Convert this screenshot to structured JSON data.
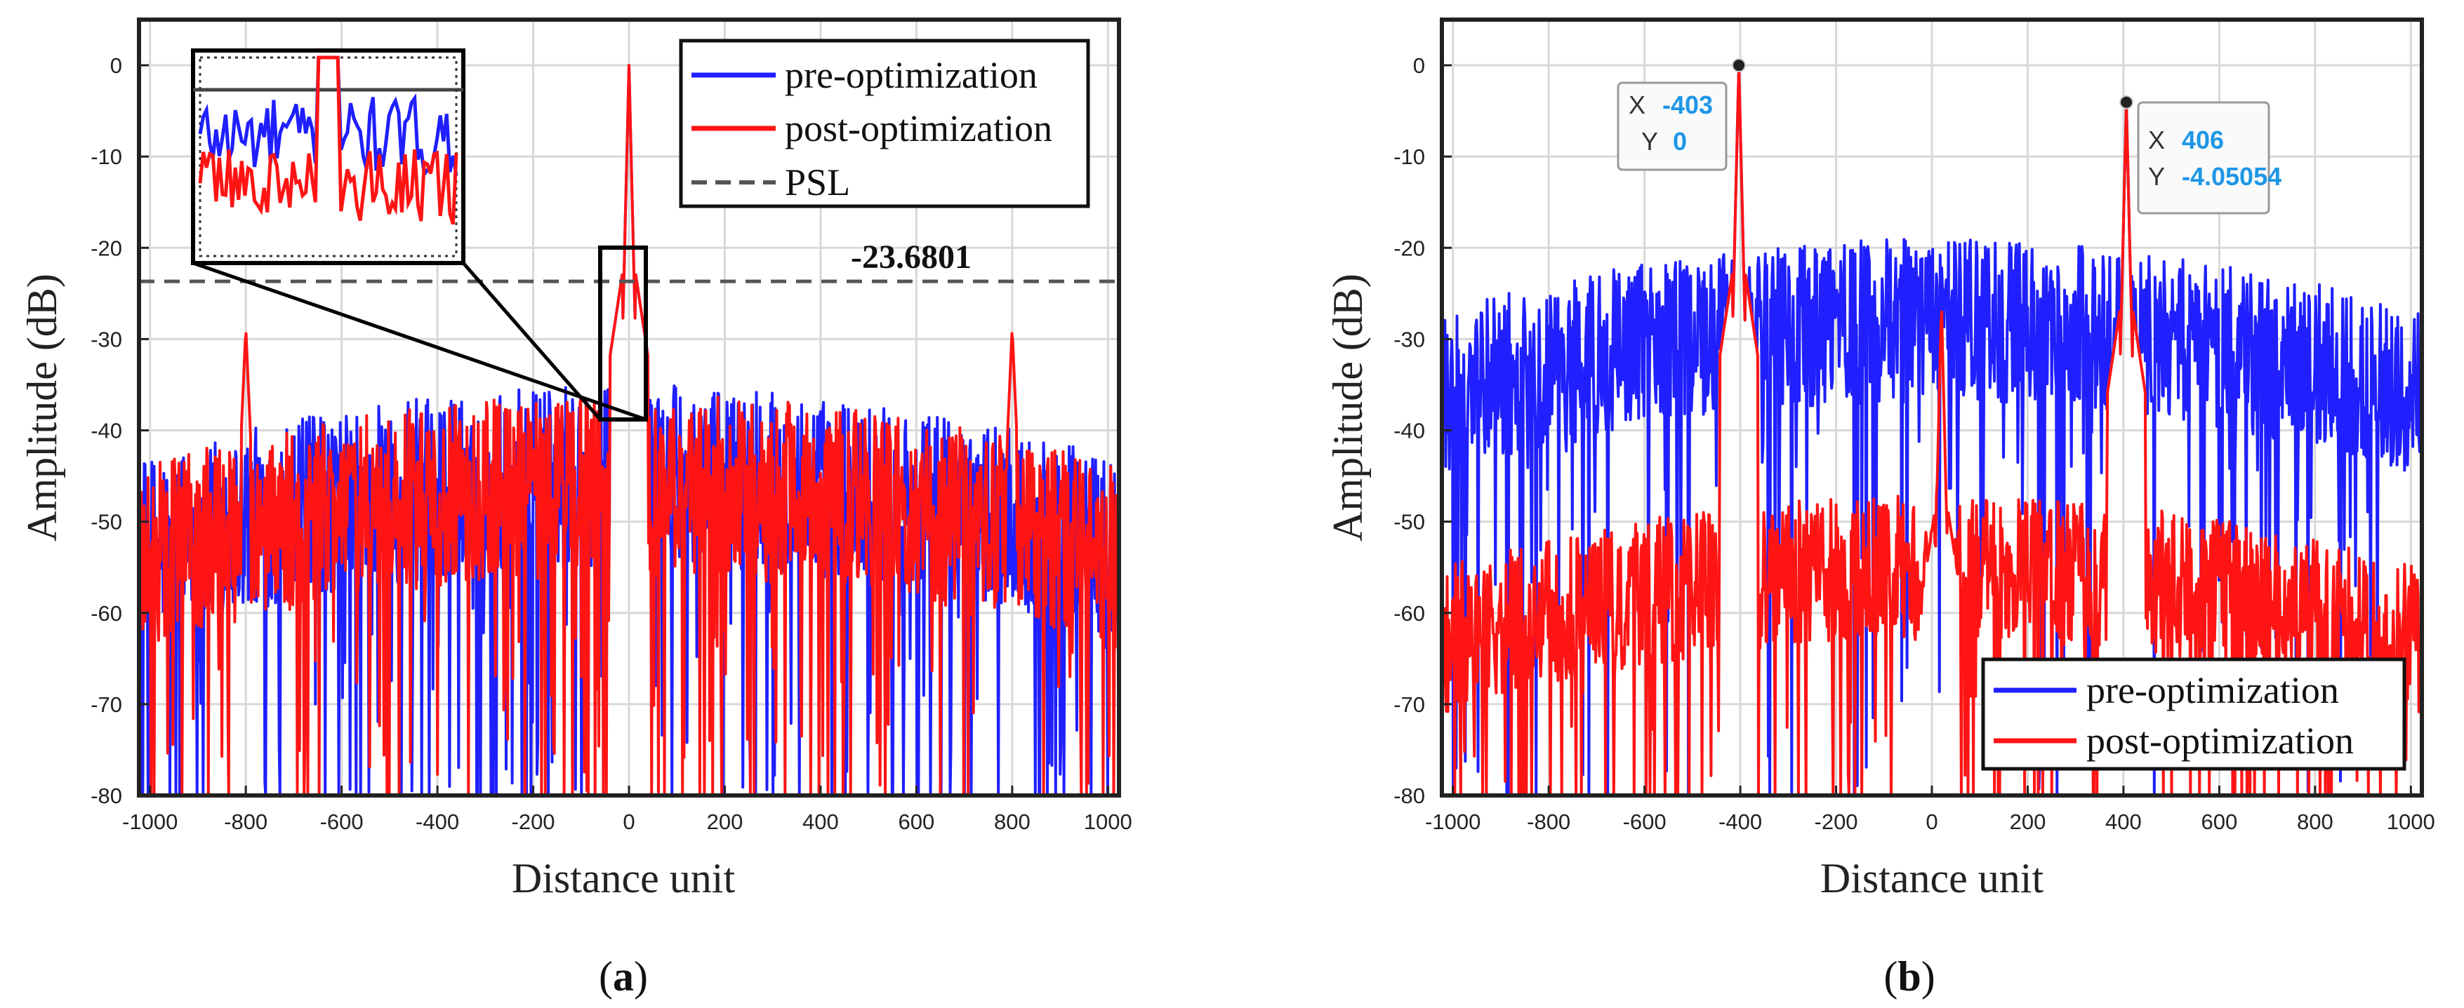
{
  "figure": {
    "caption_a": "a",
    "caption_b": "b"
  },
  "colors": {
    "pre": "#1f1fff",
    "post": "#ff1414",
    "psl": "#555555",
    "grid": "#d8d8d8",
    "datatip_value": "#1e96e6"
  },
  "chart_data": [
    {
      "id": "a",
      "type": "line",
      "xlabel": "Distance unit",
      "ylabel": "Amplitude (dB)",
      "xlim": [
        -1023,
        1023
      ],
      "ylim": [
        -80,
        5
      ],
      "xticks": [
        -1000,
        -800,
        -600,
        -400,
        -200,
        0,
        200,
        400,
        600,
        800,
        1000
      ],
      "yticks": [
        0,
        -10,
        -20,
        -30,
        -40,
        -50,
        -60,
        -70,
        -80
      ],
      "grid": true,
      "legend_location": "top-right",
      "series": [
        {
          "name": "pre-optimization",
          "color": "#1f1fff",
          "shape": "sidelobes",
          "baseline": -45,
          "spread": 10,
          "floor": -72,
          "peaks": [
            {
              "x": 0,
              "y": 0
            }
          ]
        },
        {
          "name": "post-optimization",
          "color": "#ff1414",
          "shape": "sidelobes",
          "baseline": -46,
          "spread": 10,
          "floor": -72,
          "peaks": [
            {
              "x": 0,
              "y": 0
            }
          ],
          "side_peaks": [
            {
              "x": -800,
              "y": -28.8
            },
            {
              "x": 800,
              "y": -28.8
            }
          ]
        }
      ],
      "reference_line": {
        "name": "PSL",
        "y": -23.6801,
        "style": "dashed"
      },
      "annotation": "-23.6801",
      "inset": {
        "description": "zoomed mainlobe region",
        "x_range": [
          -50,
          50
        ],
        "y_range": [
          -40,
          -20
        ]
      }
    },
    {
      "id": "b",
      "type": "line",
      "xlabel": "Distance unit",
      "ylabel": "Amplitude (dB)",
      "xlim": [
        -1023,
        1023
      ],
      "ylim": [
        -80,
        5
      ],
      "xticks": [
        -1000,
        -800,
        -600,
        -400,
        -200,
        0,
        200,
        400,
        600,
        800,
        1000
      ],
      "yticks": [
        0,
        -10,
        -20,
        -30,
        -40,
        -50,
        -60,
        -70,
        -80
      ],
      "grid": true,
      "legend_location": "bottom-right",
      "series": [
        {
          "name": "pre-optimization",
          "color": "#1f1fff",
          "shape": "sidelobes",
          "baseline": -28,
          "spread": 9,
          "floor": -60,
          "peaks": [
            {
              "x": -403,
              "y": 0
            },
            {
              "x": 406,
              "y": -4.05054
            }
          ]
        },
        {
          "name": "post-optimization",
          "color": "#ff1414",
          "shape": "sidelobes",
          "baseline": -55,
          "spread": 8,
          "floor": -78,
          "peaks": [
            {
              "x": -403,
              "y": 0
            },
            {
              "x": 406,
              "y": -4.05054
            },
            {
              "x": 20,
              "y": -26
            }
          ]
        }
      ],
      "datatips": [
        {
          "x_label": "X",
          "x_value": "-403",
          "y_label": "Y",
          "y_value": "0",
          "x": -403,
          "y": 0
        },
        {
          "x_label": "X",
          "x_value": "406",
          "y_label": "Y",
          "y_value": "-4.05054",
          "x": 406,
          "y": -4.05054
        }
      ]
    }
  ]
}
